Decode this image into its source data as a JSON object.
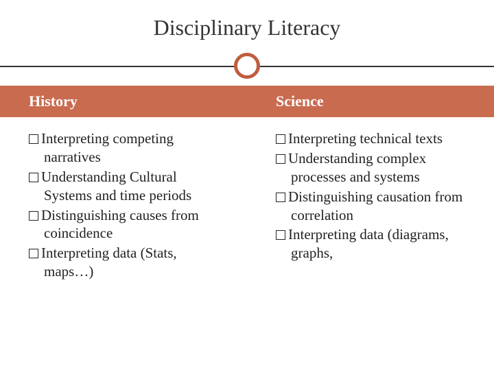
{
  "title": "Disciplinary Literacy",
  "accent_color": "#c96b4f",
  "circle_border_color": "#c05d3f",
  "line_color": "#333333",
  "background_color": "#ffffff",
  "text_color": "#222222",
  "title_fontsize": 32,
  "header_fontsize": 22,
  "body_fontsize": 21,
  "columns": [
    {
      "header": "History",
      "items": [
        "Interpreting competing narratives",
        "Understanding Cultural Systems and time periods",
        "Distinguishing causes from coincidence",
        "Interpreting data (Stats, maps…)"
      ]
    },
    {
      "header": "Science",
      "items": [
        "Interpreting technical texts",
        "Understanding complex processes and systems",
        "Distinguishing causation from correlation",
        "Interpreting data (diagrams, graphs,"
      ]
    }
  ]
}
